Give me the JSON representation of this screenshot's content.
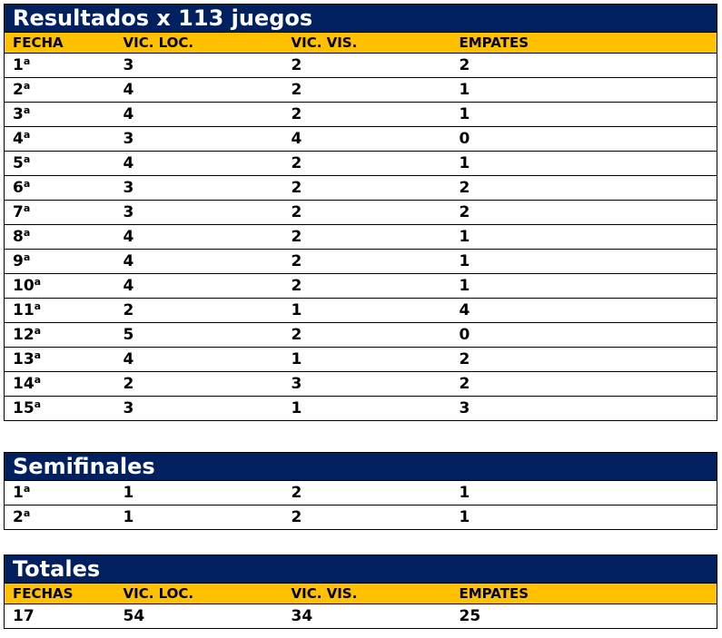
{
  "main": {
    "title": "Resultados x 113 juegos",
    "columns": [
      "FECHA",
      "VIC. LOC.",
      "VIC. VIS.",
      "EMPATES"
    ],
    "rows": [
      [
        "1",
        "a",
        "3",
        "2",
        "2"
      ],
      [
        "2",
        "a",
        "4",
        "2",
        "1"
      ],
      [
        "3",
        "a",
        "4",
        "2",
        "1"
      ],
      [
        "4",
        "a",
        "3",
        "4",
        "0"
      ],
      [
        "5",
        "a",
        "4",
        "2",
        "1"
      ],
      [
        "6",
        "a",
        "3",
        "2",
        "2"
      ],
      [
        "7",
        "a",
        "3",
        "2",
        "2"
      ],
      [
        "8",
        "a",
        "4",
        "2",
        "1"
      ],
      [
        "9",
        "a",
        "4",
        "2",
        "1"
      ],
      [
        "10",
        "a",
        "4",
        "2",
        "1"
      ],
      [
        "11",
        "a",
        "2",
        "1",
        "4"
      ],
      [
        "12",
        "a",
        "5",
        "2",
        "0"
      ],
      [
        "13",
        "a",
        "4",
        "1",
        "2"
      ],
      [
        "14",
        "a",
        "2",
        "3",
        "2"
      ],
      [
        "15",
        "a",
        "3",
        "1",
        "3"
      ]
    ]
  },
  "semis": {
    "title": "Semifinales",
    "rows": [
      [
        "1",
        "a",
        "1",
        "2",
        "1"
      ],
      [
        "2",
        "a",
        "1",
        "2",
        "1"
      ]
    ]
  },
  "totals": {
    "title": "Totales",
    "columns": [
      "FECHAS",
      "VIC. LOC.",
      "VIC. VIS.",
      "EMPATES"
    ],
    "values": [
      "17",
      "54",
      "34",
      "25"
    ]
  },
  "colors": {
    "title_bg": "#002060",
    "header_bg": "#FFC000"
  }
}
